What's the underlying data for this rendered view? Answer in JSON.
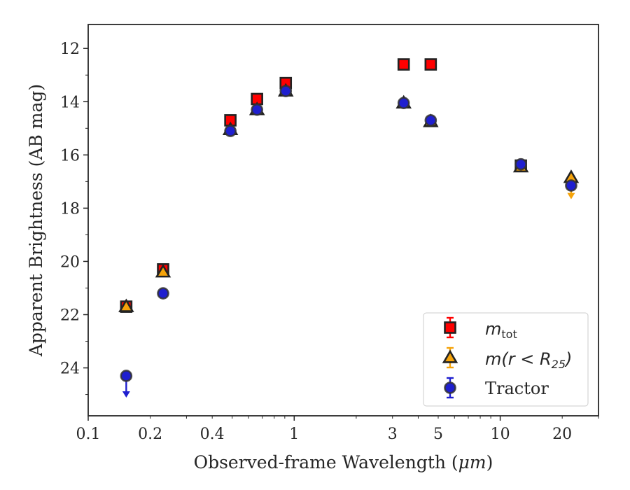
{
  "chart_data": {
    "type": "scatter",
    "xscale": "log",
    "xlim": [
      0.1,
      30
    ],
    "ylim": [
      25.8,
      11.1
    ],
    "y_inverted": true,
    "grid": false,
    "legend_position": "lower-right",
    "xlabel_prefix": "Observed-frame Wavelength (",
    "xlabel_unit": "μm",
    "xlabel_suffix": ")",
    "ylabel": "Apparent Brightness (AB mag)",
    "x_tick_values": [
      0.1,
      0.2,
      0.4,
      1,
      3,
      5,
      10,
      20
    ],
    "x_tick_labels": [
      "0.1",
      "0.2",
      "0.4",
      "1",
      "3",
      "5",
      "10",
      "20"
    ],
    "y_tick_values": [
      12,
      14,
      16,
      18,
      20,
      22,
      24
    ],
    "y_tick_labels": [
      "12",
      "14",
      "16",
      "18",
      "20",
      "22",
      "24"
    ],
    "series": [
      {
        "name": "m_tot",
        "legend_base": "m",
        "legend_sub": "tot",
        "marker": "square",
        "color": "#ff0000",
        "edge": "#222222",
        "points": [
          {
            "x": 0.153,
            "y": 21.7
          },
          {
            "x": 0.231,
            "y": 20.3
          },
          {
            "x": 0.49,
            "y": 14.7
          },
          {
            "x": 0.66,
            "y": 13.9
          },
          {
            "x": 0.91,
            "y": 13.3
          },
          {
            "x": 3.4,
            "y": 12.6
          },
          {
            "x": 4.6,
            "y": 12.6
          },
          {
            "x": 12.6,
            "y": 16.4
          }
        ]
      },
      {
        "name": "m(r < R_25)",
        "legend_prefix": "m(r < R",
        "legend_sub": "25",
        "legend_suffix": ")",
        "marker": "triangle",
        "color": "#f5a30a",
        "edge": "#222222",
        "points": [
          {
            "x": 0.153,
            "y": 21.7
          },
          {
            "x": 0.231,
            "y": 20.4
          },
          {
            "x": 0.49,
            "y": 15.05
          },
          {
            "x": 0.66,
            "y": 14.3
          },
          {
            "x": 0.91,
            "y": 13.6
          },
          {
            "x": 3.4,
            "y": 14.05
          },
          {
            "x": 4.6,
            "y": 14.75
          },
          {
            "x": 12.6,
            "y": 16.45
          },
          {
            "x": 22.1,
            "y": 16.85,
            "upper_limit": true
          }
        ]
      },
      {
        "name": "Tractor",
        "marker": "circle",
        "color": "#1f1fcf",
        "edge": "#333333",
        "points": [
          {
            "x": 0.153,
            "y": 24.3,
            "upper_limit": true
          },
          {
            "x": 0.231,
            "y": 21.2
          },
          {
            "x": 0.49,
            "y": 15.1
          },
          {
            "x": 0.66,
            "y": 14.3
          },
          {
            "x": 0.91,
            "y": 13.6
          },
          {
            "x": 3.4,
            "y": 14.05
          },
          {
            "x": 4.6,
            "y": 14.7
          },
          {
            "x": 12.6,
            "y": 16.35
          },
          {
            "x": 22.1,
            "y": 17.15
          }
        ]
      }
    ]
  }
}
